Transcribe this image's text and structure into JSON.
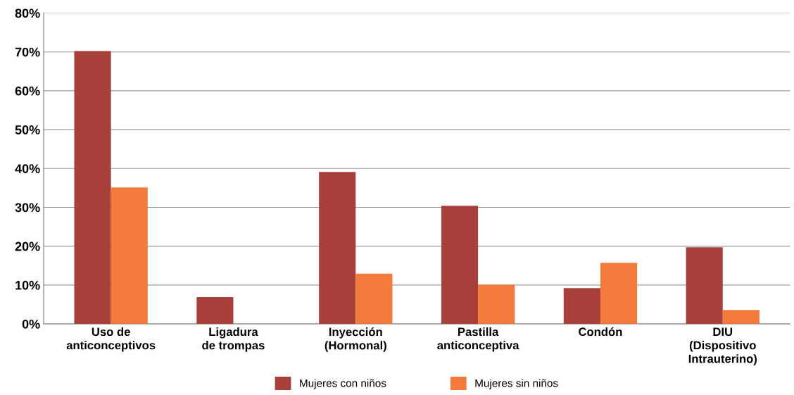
{
  "chart_data": {
    "type": "bar",
    "categories": [
      "Uso de\nanticonceptivos",
      "Ligadura\nde trompas",
      "Inyección\n(Hormonal)",
      "Pastilla\nanticonceptiva",
      "Condón",
      "DIU\n(Dispositivo\nIntrauterino)"
    ],
    "series": [
      {
        "name": "Mujeres con niños",
        "color": "#a93f3b",
        "values": [
          70.2,
          6.9,
          39.1,
          30.4,
          9.2,
          19.7
        ]
      },
      {
        "name": "Mujeres sin niños",
        "color": "#f27a3b",
        "values": [
          35.1,
          null,
          12.9,
          10.1,
          15.7,
          3.6
        ]
      }
    ],
    "ylim": [
      0,
      80
    ],
    "yticks": [
      {
        "value": 0,
        "label": "0%"
      },
      {
        "value": 10,
        "label": "10%"
      },
      {
        "value": 20,
        "label": "20%"
      },
      {
        "value": 30,
        "label": "30%"
      },
      {
        "value": 40,
        "label": "40%"
      },
      {
        "value": 50,
        "label": "50%"
      },
      {
        "value": 60,
        "label": "60%"
      },
      {
        "value": 70,
        "label": "70%"
      },
      {
        "value": 80,
        "label": "80%"
      }
    ],
    "grid": "y",
    "legend": "bottom"
  }
}
